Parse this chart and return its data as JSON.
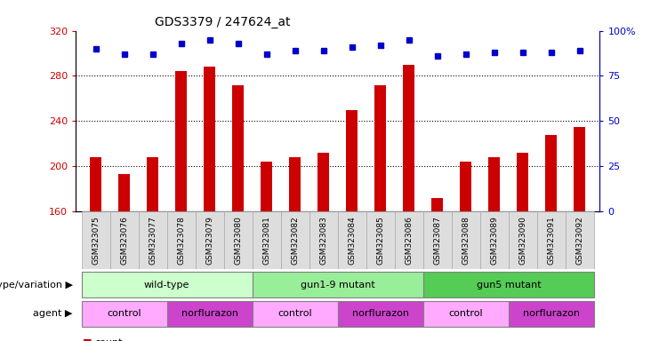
{
  "title": "GDS3379 / 247624_at",
  "samples": [
    "GSM323075",
    "GSM323076",
    "GSM323077",
    "GSM323078",
    "GSM323079",
    "GSM323080",
    "GSM323081",
    "GSM323082",
    "GSM323083",
    "GSM323084",
    "GSM323085",
    "GSM323086",
    "GSM323087",
    "GSM323088",
    "GSM323089",
    "GSM323090",
    "GSM323091",
    "GSM323092"
  ],
  "counts": [
    208,
    193,
    208,
    284,
    288,
    272,
    204,
    208,
    212,
    250,
    272,
    290,
    172,
    204,
    208,
    212,
    228,
    235
  ],
  "percentile_ranks": [
    90,
    87,
    87,
    93,
    95,
    93,
    87,
    89,
    89,
    91,
    92,
    95,
    86,
    87,
    88,
    88,
    88,
    89
  ],
  "ylim_left": [
    160,
    320
  ],
  "ylim_right": [
    0,
    100
  ],
  "yticks_left": [
    160,
    200,
    240,
    280,
    320
  ],
  "yticks_right": [
    0,
    25,
    50,
    75,
    100
  ],
  "ytick_labels_right": [
    "0",
    "25",
    "50",
    "75",
    "100%"
  ],
  "bar_color": "#cc0000",
  "marker_color": "#0000cc",
  "background_color": "#ffffff",
  "genotype_groups": [
    {
      "label": "wild-type",
      "start": 0,
      "end": 5,
      "color": "#ccffcc"
    },
    {
      "label": "gun1-9 mutant",
      "start": 6,
      "end": 11,
      "color": "#99ee99"
    },
    {
      "label": "gun5 mutant",
      "start": 12,
      "end": 17,
      "color": "#55cc55"
    }
  ],
  "agent_groups": [
    {
      "label": "control",
      "start": 0,
      "end": 2,
      "color": "#ffaaff"
    },
    {
      "label": "norflurazon",
      "start": 3,
      "end": 5,
      "color": "#cc44cc"
    },
    {
      "label": "control",
      "start": 6,
      "end": 8,
      "color": "#ffaaff"
    },
    {
      "label": "norflurazon",
      "start": 9,
      "end": 11,
      "color": "#cc44cc"
    },
    {
      "label": "control",
      "start": 12,
      "end": 14,
      "color": "#ffaaff"
    },
    {
      "label": "norflurazon",
      "start": 15,
      "end": 17,
      "color": "#cc44cc"
    }
  ]
}
